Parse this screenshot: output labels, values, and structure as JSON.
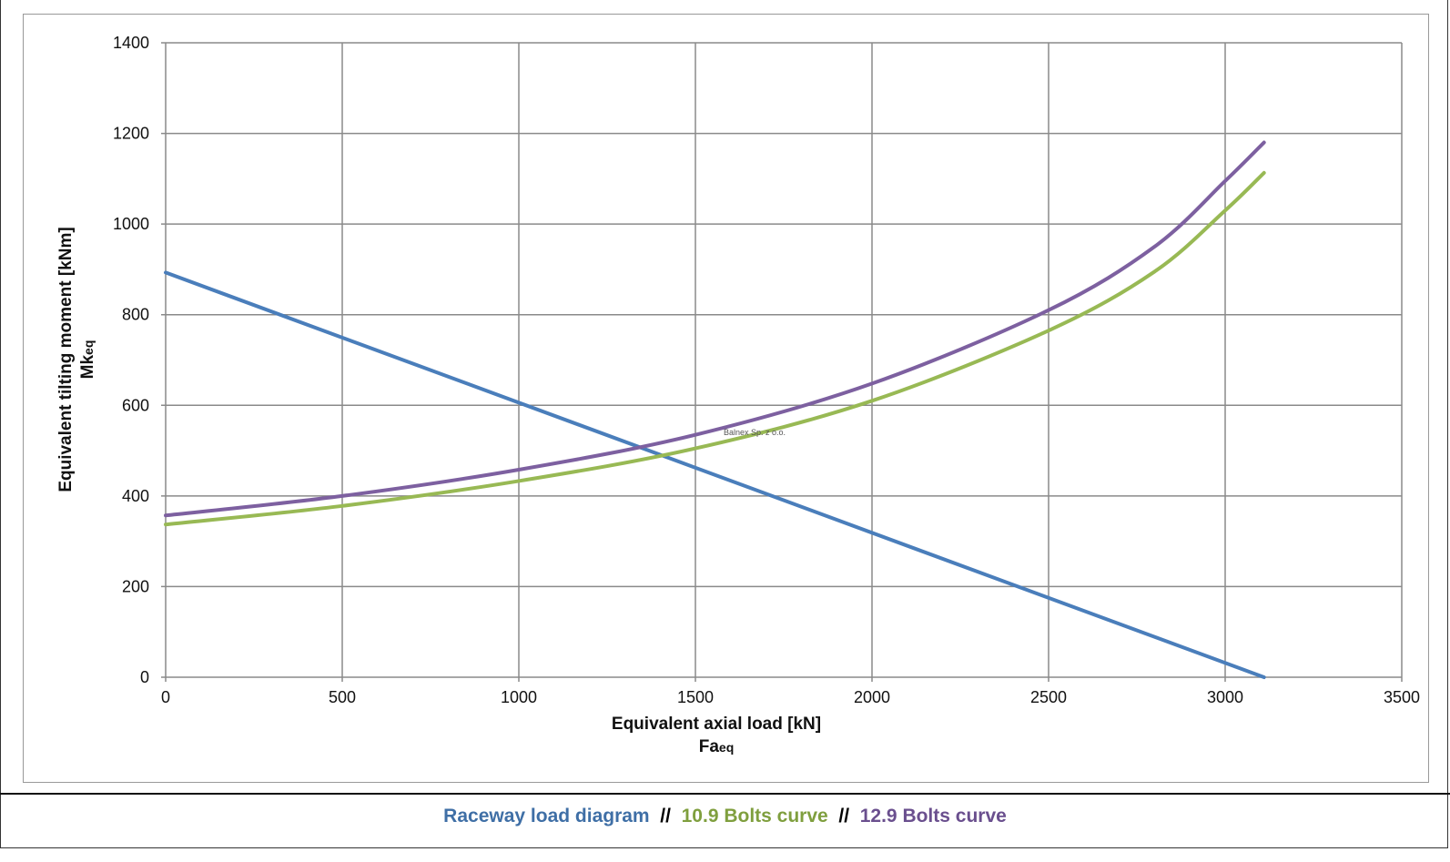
{
  "chart_data": {
    "type": "line",
    "xlabel": "Equivalent axial load [kN]",
    "xlabel_sub": "Fa",
    "xlabel_sub_suffix": "eq",
    "ylabel": "Equivalent tilting moment [kNm]",
    "ylabel_sub": "Mk",
    "ylabel_sub_suffix": "eq",
    "xlim": [
      0,
      3500
    ],
    "ylim": [
      0,
      1400
    ],
    "xticks": [
      "0",
      "500",
      "1000",
      "1500",
      "2000",
      "2500",
      "3000",
      "3500"
    ],
    "yticks": [
      "0",
      "200",
      "400",
      "600",
      "800",
      "1000",
      "1200",
      "1400"
    ],
    "grid": true,
    "watermark": "Balnex Sp. z o.o.",
    "series": [
      {
        "name": "Raceway load diagram",
        "color": "#4a7ebb",
        "x": [
          0,
          3110
        ],
        "y": [
          893,
          0
        ]
      },
      {
        "name": "10.9 Bolts curve",
        "color": "#98b954",
        "x": [
          0,
          500,
          1000,
          1500,
          2000,
          2500,
          2800,
          3000,
          3110
        ],
        "y": [
          337,
          378,
          433,
          505,
          610,
          765,
          895,
          1030,
          1113
        ]
      },
      {
        "name": "12.9 Bolts curve",
        "color": "#7d60a0",
        "x": [
          0,
          500,
          1000,
          1500,
          2000,
          2500,
          2800,
          3000,
          3110
        ],
        "y": [
          357,
          400,
          458,
          535,
          648,
          810,
          950,
          1095,
          1180
        ]
      }
    ]
  },
  "legend": {
    "items": [
      {
        "label": "Raceway load diagram",
        "color": "#3f6fa6"
      },
      {
        "label": "10.9 Bolts curve",
        "color": "#7f9f3e"
      },
      {
        "label": "12.9 Bolts curve",
        "color": "#6a4f8e"
      }
    ],
    "separator": "//"
  }
}
